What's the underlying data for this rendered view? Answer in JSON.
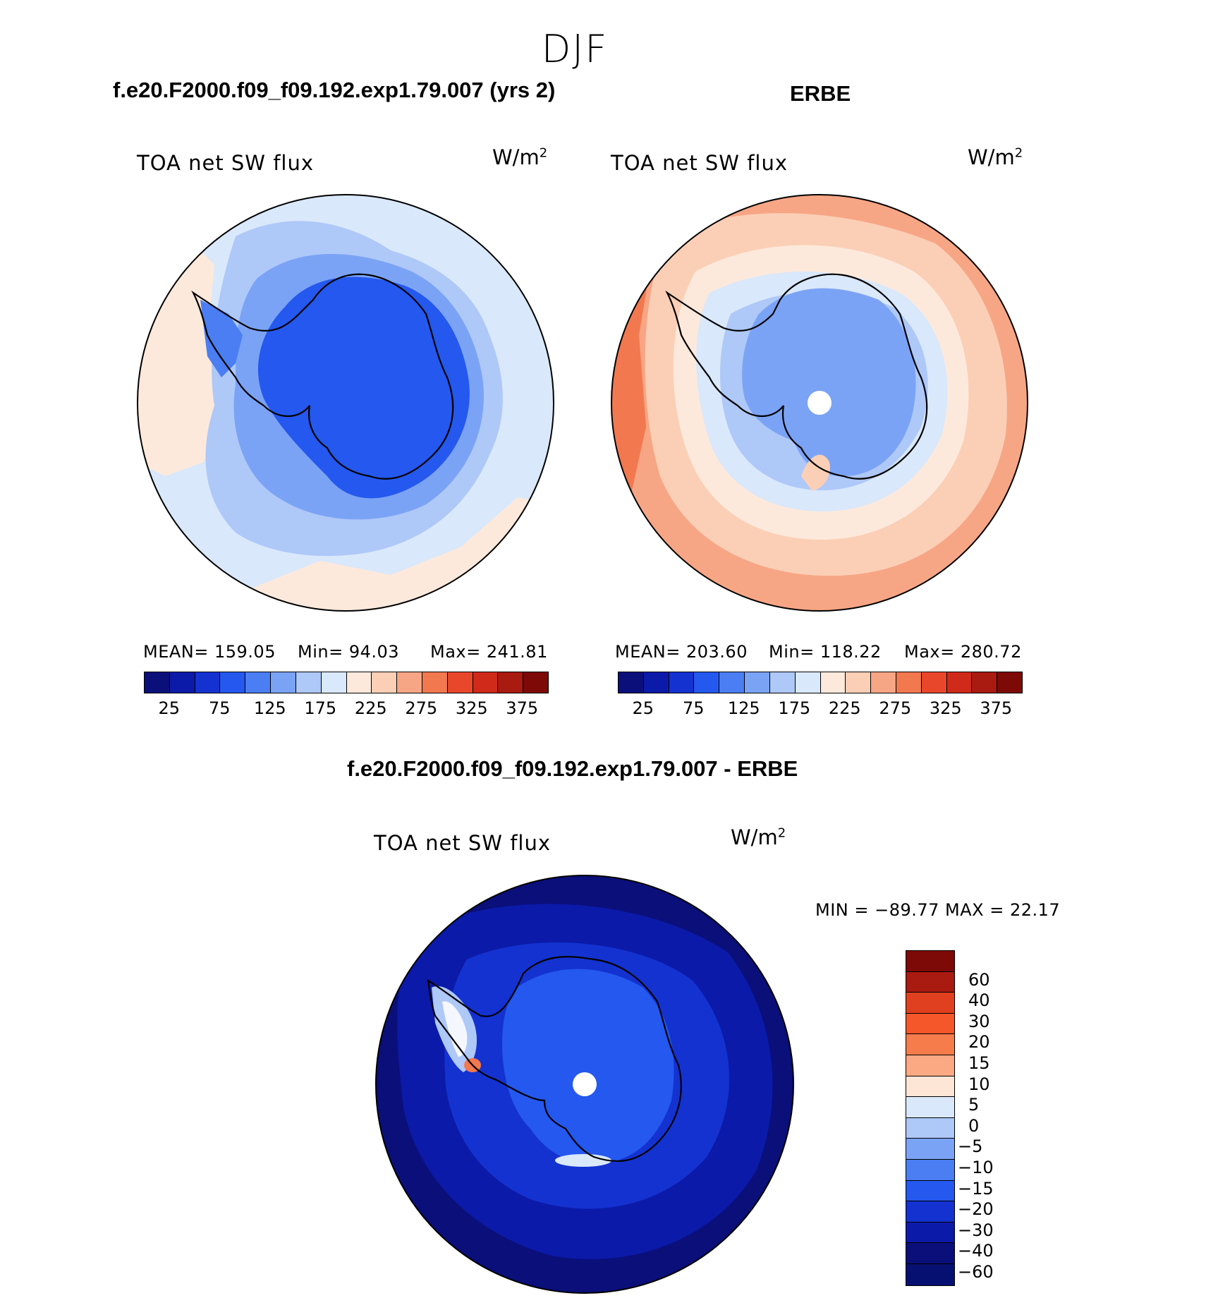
{
  "figure": {
    "season": "DJF",
    "variable": "TOA net SW flux",
    "units_base": "W/m",
    "units_exp": "2"
  },
  "panels": {
    "model": {
      "title": "f.e20.F2000.f09_f09.192.exp1.79.007 (yrs 2)",
      "mean_text": "MEAN= 159.05",
      "min_text": "Min=   94.03",
      "max_text": "Max= 241.81"
    },
    "obs": {
      "title": "ERBE",
      "mean_text": "MEAN= 203.60",
      "min_text": "Min= 118.22",
      "max_text": "Max= 280.72"
    },
    "diff": {
      "title": "f.e20.F2000.f09_f09.192.exp1.79.007 - ERBE",
      "minmax_text": "MIN = −89.77 MAX =   22.17"
    }
  },
  "colorbar_abs": {
    "tick_labels": [
      "25",
      "75",
      "125",
      "175",
      "225",
      "275",
      "325",
      "375"
    ],
    "colors": [
      "#0a0f7a",
      "#0b1aa8",
      "#1432d0",
      "#2458ee",
      "#4a7ef2",
      "#7ba3f5",
      "#aec8f8",
      "#d9e8fb",
      "#fde9dc",
      "#fbcfb6",
      "#f7a685",
      "#f2784f",
      "#e9472c",
      "#cf2a1a",
      "#a91a10",
      "#7d0a06"
    ]
  },
  "colorbar_diff": {
    "tick_labels": [
      "60",
      "40",
      "30",
      "20",
      "15",
      "10",
      "5",
      "0",
      "−5",
      "−10",
      "−15",
      "−20",
      "−30",
      "−40",
      "−60"
    ],
    "colors": [
      "#7d0a06",
      "#a91a10",
      "#e0401f",
      "#f5562a",
      "#f77c4b",
      "#fba983",
      "#fde6d6",
      "#d9e8fb",
      "#aec8f8",
      "#7ba3f5",
      "#4a7ef2",
      "#2458ee",
      "#1432d0",
      "#0b1aa8",
      "#0a0f7a",
      "#061070"
    ]
  },
  "chart_data": [
    {
      "type": "heatmap",
      "title": "f.e20.F2000.f09_f09.192.exp1.79.007 (yrs 2)",
      "projection": "south polar stereographic",
      "variable": "TOA net SW flux",
      "units": "W/m2",
      "mean": 159.05,
      "min": 94.03,
      "max": 241.81,
      "contour_levels": [
        25,
        50,
        75,
        100,
        125,
        150,
        175,
        200,
        225,
        250,
        275,
        300,
        325,
        350,
        375
      ]
    },
    {
      "type": "heatmap",
      "title": "ERBE",
      "projection": "south polar stereographic",
      "variable": "TOA net SW flux",
      "units": "W/m2",
      "mean": 203.6,
      "min": 118.22,
      "max": 280.72,
      "contour_levels": [
        25,
        50,
        75,
        100,
        125,
        150,
        175,
        200,
        225,
        250,
        275,
        300,
        325,
        350,
        375
      ]
    },
    {
      "type": "heatmap",
      "title": "f.e20.F2000.f09_f09.192.exp1.79.007 - ERBE",
      "projection": "south polar stereographic",
      "variable": "TOA net SW flux",
      "units": "W/m2",
      "min": -89.77,
      "max": 22.17,
      "contour_levels": [
        -60,
        -40,
        -30,
        -20,
        -15,
        -10,
        -5,
        0,
        5,
        10,
        15,
        20,
        30,
        40,
        60
      ]
    }
  ]
}
